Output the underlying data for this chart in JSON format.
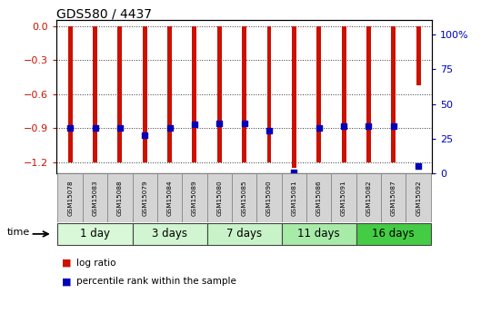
{
  "title": "GDS580 / 4437",
  "samples": [
    "GSM15078",
    "GSM15083",
    "GSM15088",
    "GSM15079",
    "GSM15084",
    "GSM15089",
    "GSM15080",
    "GSM15085",
    "GSM15090",
    "GSM15081",
    "GSM15086",
    "GSM15091",
    "GSM15082",
    "GSM15087",
    "GSM15092"
  ],
  "log_ratios": [
    -1.2,
    -1.2,
    -1.2,
    -1.2,
    -1.2,
    -1.2,
    -1.2,
    -1.2,
    -1.2,
    -1.25,
    -1.2,
    -1.2,
    -1.2,
    -1.2,
    -0.52
  ],
  "percentile_ranks": [
    30,
    30,
    30,
    25,
    30,
    32,
    33,
    33,
    28,
    1,
    30,
    31,
    31,
    31,
    5
  ],
  "groups": [
    {
      "label": "1 day",
      "start": 0,
      "end": 3,
      "color": "#d8f8d8"
    },
    {
      "label": "3 days",
      "start": 3,
      "end": 6,
      "color": "#d0f5d0"
    },
    {
      "label": "7 days",
      "start": 6,
      "end": 9,
      "color": "#c8f2c8"
    },
    {
      "label": "11 days",
      "start": 9,
      "end": 12,
      "color": "#a8eaa8"
    },
    {
      "label": "16 days",
      "start": 12,
      "end": 15,
      "color": "#44cc44"
    }
  ],
  "ylim_left": [
    -1.3,
    0.05
  ],
  "ylim_right": [
    0,
    110
  ],
  "yticks_left": [
    0,
    -0.3,
    -0.6,
    -0.9,
    -1.2
  ],
  "yticks_right": [
    0,
    25,
    50,
    75,
    100
  ],
  "ytick_right_labels": [
    "0",
    "25",
    "50",
    "75",
    "100%"
  ],
  "bar_color": "#cc1100",
  "dot_color": "#0000bb",
  "bar_width": 0.18,
  "background_color": "#ffffff"
}
